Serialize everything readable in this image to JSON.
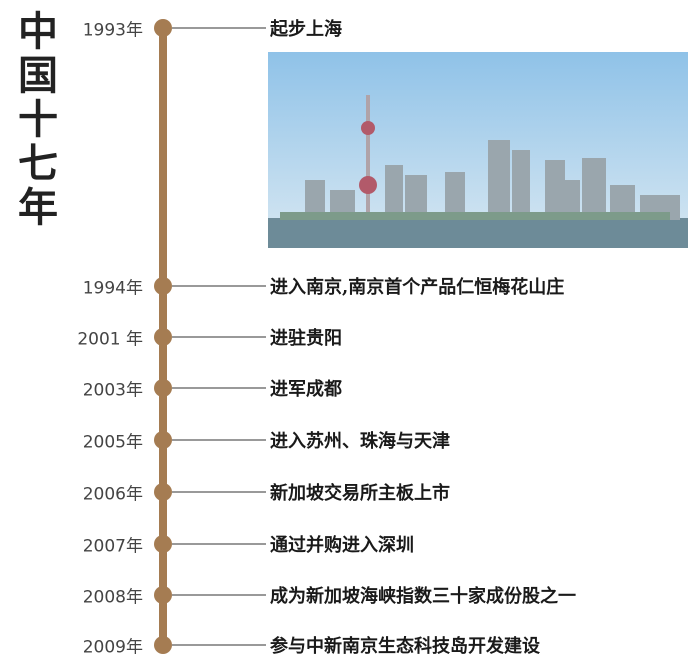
{
  "title": "中国十七年",
  "events": [
    {
      "year": "1993年",
      "text": "起步上海"
    },
    {
      "year": "1994年",
      "text": "进入南京,南京首个产品仁恒梅花山庄"
    },
    {
      "year": "2001 年",
      "text": "进驻贵阳"
    },
    {
      "year": "2003年",
      "text": "进军成都"
    },
    {
      "year": "2005年",
      "text": "进入苏州、珠海与天津"
    },
    {
      "year": "2006年",
      "text": "新加坡交易所主板上市"
    },
    {
      "year": "2007年",
      "text": "通过并购进入深圳"
    },
    {
      "year": "2008年",
      "text": "成为新加坡海峡指数三十家成份股之一"
    },
    {
      "year": "2009年",
      "text": "参与中新南京生态科技岛开发建设"
    }
  ]
}
